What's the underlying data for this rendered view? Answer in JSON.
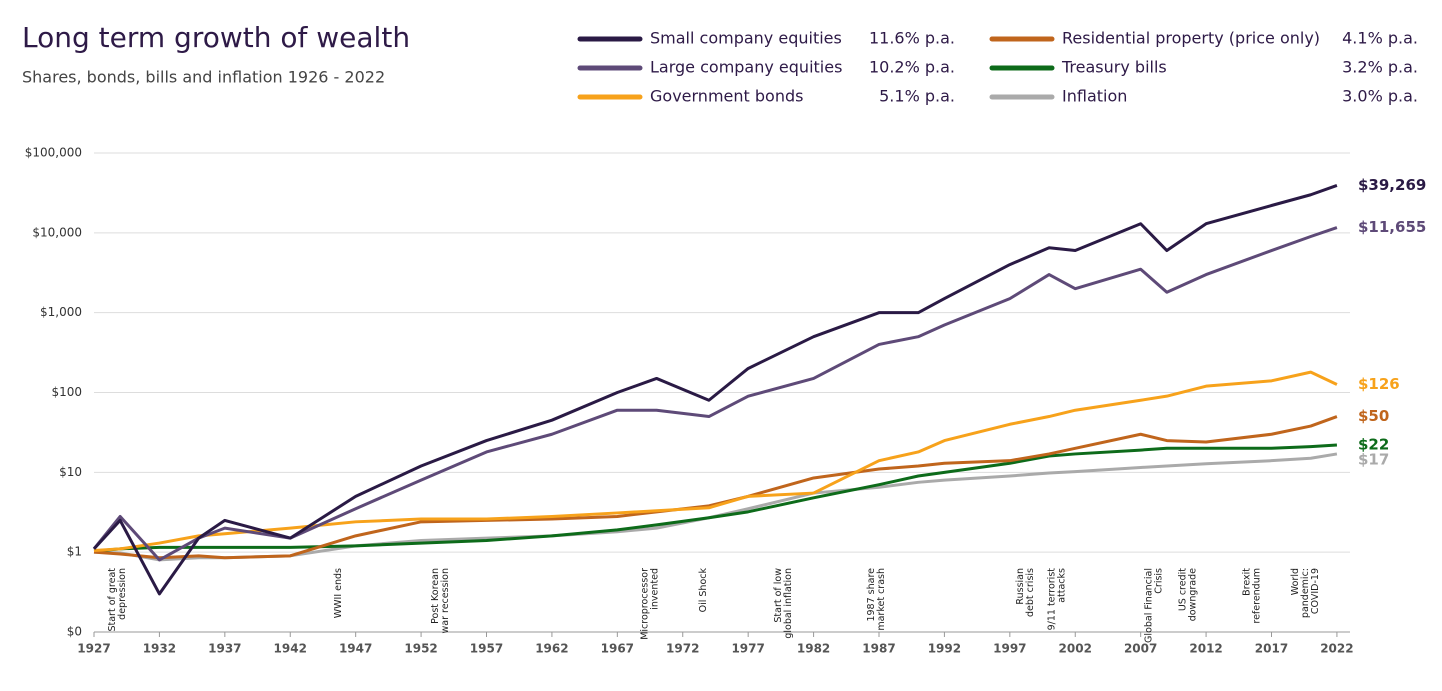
{
  "chart_data": {
    "type": "line",
    "title": "Long term growth of wealth",
    "subtitle": "Shares, bonds, bills and inflation 1926 - 2022",
    "log_scale": true,
    "grid": true,
    "xlim": [
      1927,
      2023
    ],
    "xticks": [
      1927,
      1932,
      1937,
      1942,
      1947,
      1952,
      1957,
      1962,
      1967,
      1972,
      1977,
      1982,
      1987,
      1992,
      1997,
      2002,
      2007,
      2012,
      2017,
      2022
    ],
    "ylim": [
      0.1,
      100000
    ],
    "yticks": [
      {
        "value": 0.1,
        "label": "$0"
      },
      {
        "value": 1,
        "label": "$1"
      },
      {
        "value": 10,
        "label": "$10"
      },
      {
        "value": 100,
        "label": "$100"
      },
      {
        "value": 1000,
        "label": "$1,000"
      },
      {
        "value": 10000,
        "label": "$10,000"
      },
      {
        "value": 100000,
        "label": "$100,000"
      }
    ],
    "x": [
      1927,
      1929,
      1932,
      1935,
      1937,
      1942,
      1947,
      1952,
      1957,
      1962,
      1967,
      1970,
      1974,
      1977,
      1982,
      1987,
      1990,
      1992,
      1997,
      2000,
      2002,
      2007,
      2009,
      2012,
      2017,
      2020,
      2022
    ],
    "series": [
      {
        "name": "Small company equities",
        "rate": "11.6% p.a.",
        "color": "#2a1a45",
        "values": [
          1.1,
          2.5,
          0.3,
          1.5,
          2.5,
          1.5,
          5,
          12,
          25,
          45,
          100,
          150,
          80,
          200,
          500,
          1000,
          1000,
          1500,
          4000,
          6500,
          6000,
          13000,
          6000,
          13000,
          22000,
          30000,
          39269
        ],
        "value_labels": [
          null,
          null,
          null,
          null,
          null,
          null,
          null,
          null,
          null,
          null,
          null,
          null,
          null,
          null,
          null,
          null,
          null,
          null,
          null,
          null,
          null,
          null,
          null,
          null,
          null,
          null,
          "$39,269"
        ]
      },
      {
        "name": "Large company equities",
        "rate": "10.2% p.a.",
        "color": "#5e4a78",
        "values": [
          1.1,
          2.8,
          0.8,
          1.5,
          2,
          1.5,
          3.5,
          8,
          18,
          30,
          60,
          60,
          50,
          90,
          150,
          400,
          500,
          700,
          1500,
          3000,
          2000,
          3500,
          1800,
          3000,
          6000,
          9000,
          11655
        ],
        "value_labels": [
          null,
          null,
          null,
          null,
          null,
          null,
          null,
          null,
          null,
          null,
          null,
          null,
          null,
          null,
          null,
          null,
          null,
          null,
          null,
          null,
          null,
          null,
          null,
          null,
          null,
          null,
          "$11,655"
        ]
      },
      {
        "name": "Government bonds",
        "rate": "5.1% p.a.",
        "color": "#f7a21b",
        "values": [
          1.05,
          1.1,
          1.3,
          1.6,
          1.7,
          2.0,
          2.4,
          2.6,
          2.6,
          2.8,
          3.1,
          3.3,
          3.6,
          5,
          5.5,
          14,
          18,
          25,
          40,
          50,
          60,
          80,
          90,
          120,
          140,
          180,
          126
        ],
        "value_labels": [
          null,
          null,
          null,
          null,
          null,
          null,
          null,
          null,
          null,
          null,
          null,
          null,
          null,
          null,
          null,
          null,
          null,
          null,
          null,
          null,
          null,
          null,
          null,
          null,
          null,
          null,
          "$126"
        ]
      },
      {
        "name": "Residential property (price only)",
        "rate": "4.1% p.a.",
        "color": "#c0651c",
        "values": [
          1.0,
          0.95,
          0.85,
          0.9,
          0.85,
          0.9,
          1.6,
          2.4,
          2.5,
          2.6,
          2.8,
          3.2,
          3.8,
          5,
          8.5,
          11,
          12,
          13,
          14,
          17,
          20,
          30,
          25,
          24,
          30,
          38,
          50
        ],
        "value_labels": [
          null,
          null,
          null,
          null,
          null,
          null,
          null,
          null,
          null,
          null,
          null,
          null,
          null,
          null,
          null,
          null,
          null,
          null,
          null,
          null,
          null,
          null,
          null,
          null,
          null,
          null,
          "$50"
        ]
      },
      {
        "name": "Treasury bills",
        "rate": "3.2% p.a.",
        "color": "#0d6b1a",
        "values": [
          1.03,
          1.1,
          1.15,
          1.15,
          1.15,
          1.15,
          1.2,
          1.3,
          1.4,
          1.6,
          1.9,
          2.2,
          2.7,
          3.2,
          4.8,
          7,
          9,
          10,
          13,
          16,
          17,
          19,
          20,
          20,
          20,
          21,
          22
        ],
        "value_labels": [
          null,
          null,
          null,
          null,
          null,
          null,
          null,
          null,
          null,
          null,
          null,
          null,
          null,
          null,
          null,
          null,
          null,
          null,
          null,
          null,
          null,
          null,
          null,
          null,
          null,
          null,
          "$22"
        ]
      },
      {
        "name": "Inflation",
        "rate": "3.0% p.a.",
        "color": "#aaaaaa",
        "values": [
          1.0,
          0.98,
          0.8,
          0.85,
          0.85,
          0.9,
          1.2,
          1.4,
          1.5,
          1.6,
          1.8,
          2.0,
          2.7,
          3.5,
          5.5,
          6.5,
          7.5,
          8,
          9,
          9.8,
          10.2,
          11.5,
          12,
          12.8,
          14,
          15,
          17
        ],
        "value_labels": [
          null,
          null,
          null,
          null,
          null,
          null,
          null,
          null,
          null,
          null,
          null,
          null,
          null,
          null,
          null,
          null,
          null,
          null,
          null,
          null,
          null,
          null,
          null,
          null,
          null,
          null,
          "$17"
        ]
      }
    ],
    "annotations": [
      {
        "x": 1928.8,
        "lines": [
          "Start of great",
          "depression"
        ]
      },
      {
        "x": 1945.7,
        "lines": [
          "WWII ends"
        ]
      },
      {
        "x": 1953.5,
        "lines": [
          "Post Korean",
          "war recession"
        ]
      },
      {
        "x": 1969.5,
        "lines": [
          "Microprocessor",
          "invented"
        ]
      },
      {
        "x": 1973.6,
        "lines": [
          "Oil Shock"
        ]
      },
      {
        "x": 1979.7,
        "lines": [
          "Start of low",
          "global inflation"
        ]
      },
      {
        "x": 1986.8,
        "lines": [
          "1987 share",
          "market crash"
        ]
      },
      {
        "x": 1998.2,
        "lines": [
          "Russian",
          "debt crisis"
        ]
      },
      {
        "x": 2000.6,
        "lines": [
          "9/11 terrorist",
          "attacks"
        ]
      },
      {
        "x": 2008.0,
        "lines": [
          "Global Financial",
          "Crisis"
        ]
      },
      {
        "x": 2010.6,
        "lines": [
          "US credit",
          "downgrade"
        ]
      },
      {
        "x": 2015.5,
        "lines": [
          "Brexit",
          "referendum"
        ]
      },
      {
        "x": 2019.6,
        "lines": [
          "World",
          "pandemic:",
          "COVID-19"
        ]
      }
    ]
  }
}
